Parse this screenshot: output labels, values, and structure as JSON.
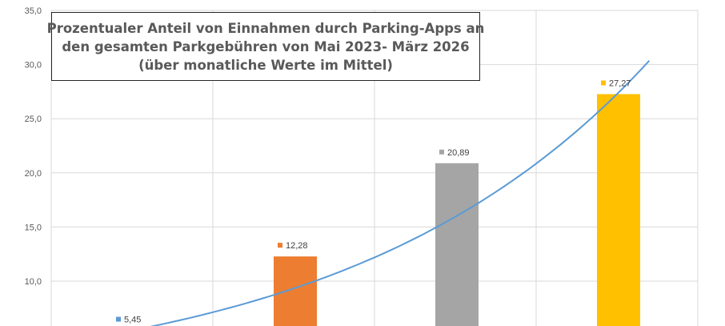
{
  "chart_data": {
    "type": "bar",
    "title_lines": [
      "Prozentualer Anteil von Einnahmen durch Parking-Apps an",
      "den gesamten Parkgebühren von Mai 2023- März 2026",
      "(über monatliche Werte im Mittel)"
    ],
    "xlabel": "",
    "ylabel": "",
    "ylim": [
      0,
      35
    ],
    "y_ticks": [
      "35,0",
      "30,0",
      "25,0",
      "20,0",
      "15,0",
      "10,0"
    ],
    "grid": true,
    "series": [
      {
        "label": "5,45",
        "value": 5.45,
        "color": "#5b9bd5"
      },
      {
        "label": "12,28",
        "value": 12.28,
        "color": "#ed7d31"
      },
      {
        "label": "20,89",
        "value": 20.89,
        "color": "#a5a5a5"
      },
      {
        "label": "27,27",
        "value": 27.27,
        "color": "#ffc000"
      }
    ],
    "trendline": {
      "type": "exponential",
      "color": "#5b9bd5"
    }
  }
}
